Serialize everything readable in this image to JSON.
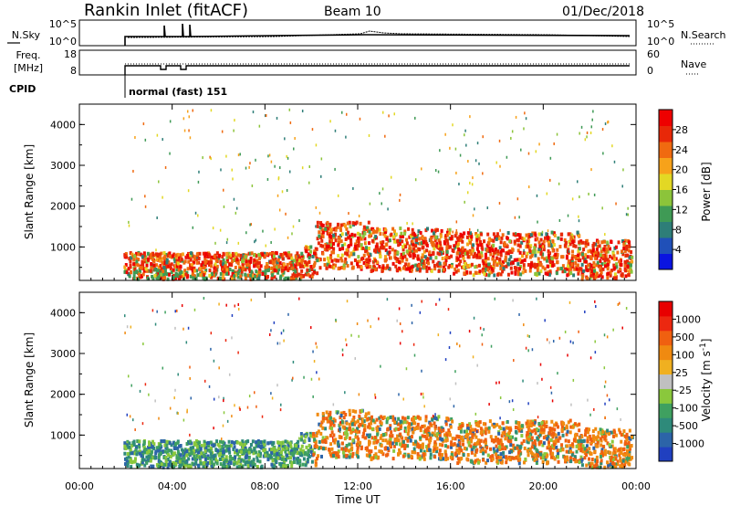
{
  "header": {
    "station": "Rankin Inlet (fitACF)",
    "beam": "Beam 10",
    "date": "01/Dec/2018"
  },
  "top_panels": {
    "nsky_label": "N.Sky",
    "nsearch_label": "N.Search",
    "freq_label_1": "Freq.",
    "freq_label_2": "[MHz]",
    "nave_label": "Nave",
    "cpid_label": "CPID",
    "cpid_value": "normal (fast) 151",
    "noise_ticks_left": [
      "10^5",
      "10^0"
    ],
    "noise_ticks_right": [
      "10^5",
      "10^0"
    ],
    "freq_ticks": [
      "18",
      "8"
    ],
    "nave_ticks": [
      "60",
      "0"
    ]
  },
  "chart_data": [
    {
      "type": "heatmap",
      "panel": "power",
      "xlabel": "Time UT",
      "ylabel": "Slant Range [km]",
      "xlim": [
        0,
        24
      ],
      "ylim": [
        180,
        4500
      ],
      "x_ticks": [
        "00:00",
        "04:00",
        "08:00",
        "12:00",
        "16:00",
        "20:00",
        "00:00"
      ],
      "y_ticks": [
        "1000",
        "2000",
        "3000",
        "4000"
      ],
      "y_tick_values": [
        1000,
        2000,
        3000,
        4000
      ],
      "colorbar": {
        "label": "Power [dB]",
        "ticks": [
          "4",
          "8",
          "12",
          "16",
          "20",
          "24",
          "28"
        ],
        "colors": [
          "#0a14e0",
          "#2050b8",
          "#2e7e78",
          "#3f9a55",
          "#8cc43a",
          "#e3d824",
          "#f7a21a",
          "#f06a10",
          "#e82808",
          "#ee0000"
        ]
      }
    },
    {
      "type": "heatmap",
      "panel": "velocity",
      "xlabel": "Time UT",
      "ylabel": "Slant Range [km]",
      "xlim": [
        0,
        24
      ],
      "ylim": [
        180,
        4500
      ],
      "x_ticks": [
        "00:00",
        "04:00",
        "08:00",
        "12:00",
        "16:00",
        "20:00",
        "00:00"
      ],
      "y_ticks": [
        "1000",
        "2000",
        "3000",
        "4000"
      ],
      "y_tick_values": [
        1000,
        2000,
        3000,
        4000
      ],
      "colorbar": {
        "label_main": "Velocity",
        "label_unit": "[m s",
        "label_exp": "-1",
        "label_end": "]",
        "ticks": [
          "1000",
          "500",
          "100",
          "25",
          "-25",
          "-100",
          "-500",
          "-1000"
        ],
        "colors": [
          "#2040c0",
          "#2c64a8",
          "#2e8a7a",
          "#3fa060",
          "#8ac83c",
          "#c0c0c0",
          "#f0b020",
          "#f08a10",
          "#f06010",
          "#ec2810",
          "#e80000"
        ]
      }
    }
  ],
  "x_axis": {
    "label": "Time UT",
    "ticks": [
      "00:00",
      "04:00",
      "08:00",
      "12:00",
      "16:00",
      "20:00",
      "00:00"
    ]
  }
}
